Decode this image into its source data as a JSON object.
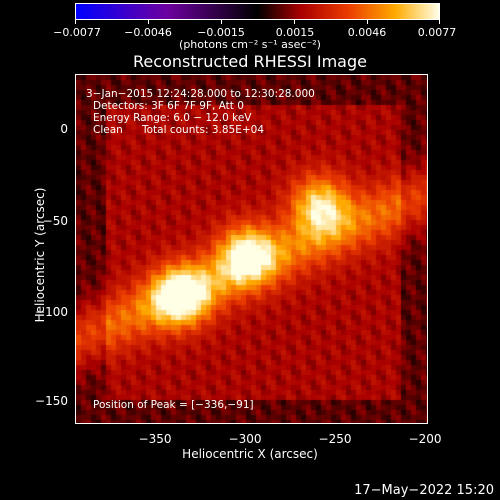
{
  "colorbar": {
    "tick_labels": [
      "−0.0077",
      "−0.0046",
      "−0.0015",
      "0.0015",
      "0.0046",
      "0.0077"
    ],
    "units_label": "(photons cm⁻² s⁻¹ asec⁻²)",
    "range": [
      -0.0077,
      0.0077
    ]
  },
  "chart_data": {
    "type": "heatmap",
    "title": "Reconstructed RHESSI Image",
    "xlabel": "Heliocentric X (arcsec)",
    "ylabel": "Heliocentric Y (arcsec)",
    "xlim": [
      -392,
      -200
    ],
    "ylim": [
      -160,
      25
    ],
    "x_ticks": [
      -350,
      -300,
      -250,
      -200
    ],
    "y_ticks": [
      0,
      -50,
      -100,
      -150
    ],
    "x_tick_labels": [
      "−350",
      "−300",
      "−250",
      "−200"
    ],
    "y_tick_labels": [
      "0",
      "−50",
      "−100",
      "−150"
    ],
    "peak_position": [
      -336,
      -91
    ],
    "sources": [
      {
        "x": -336,
        "y": -91,
        "intensity": 1.0
      },
      {
        "x": -300,
        "y": -69,
        "intensity": 0.9
      },
      {
        "x": -260,
        "y": -43,
        "intensity": 0.85
      }
    ],
    "colormap": "hot"
  },
  "info": {
    "time_range": "3−Jan−2015 12:24:28.000 to 12:30:28.000",
    "detectors": "Detectors: 3F 6F 7F 9F, Att 0",
    "energy_range": "Energy Range: 6.0 − 12.0 keV",
    "clean": "Clean",
    "total_counts": "Total counts: 3.85E+04",
    "peak_position": "Position of Peak = [−336,−91]"
  },
  "timestamp": "17−May−2022 15:20"
}
